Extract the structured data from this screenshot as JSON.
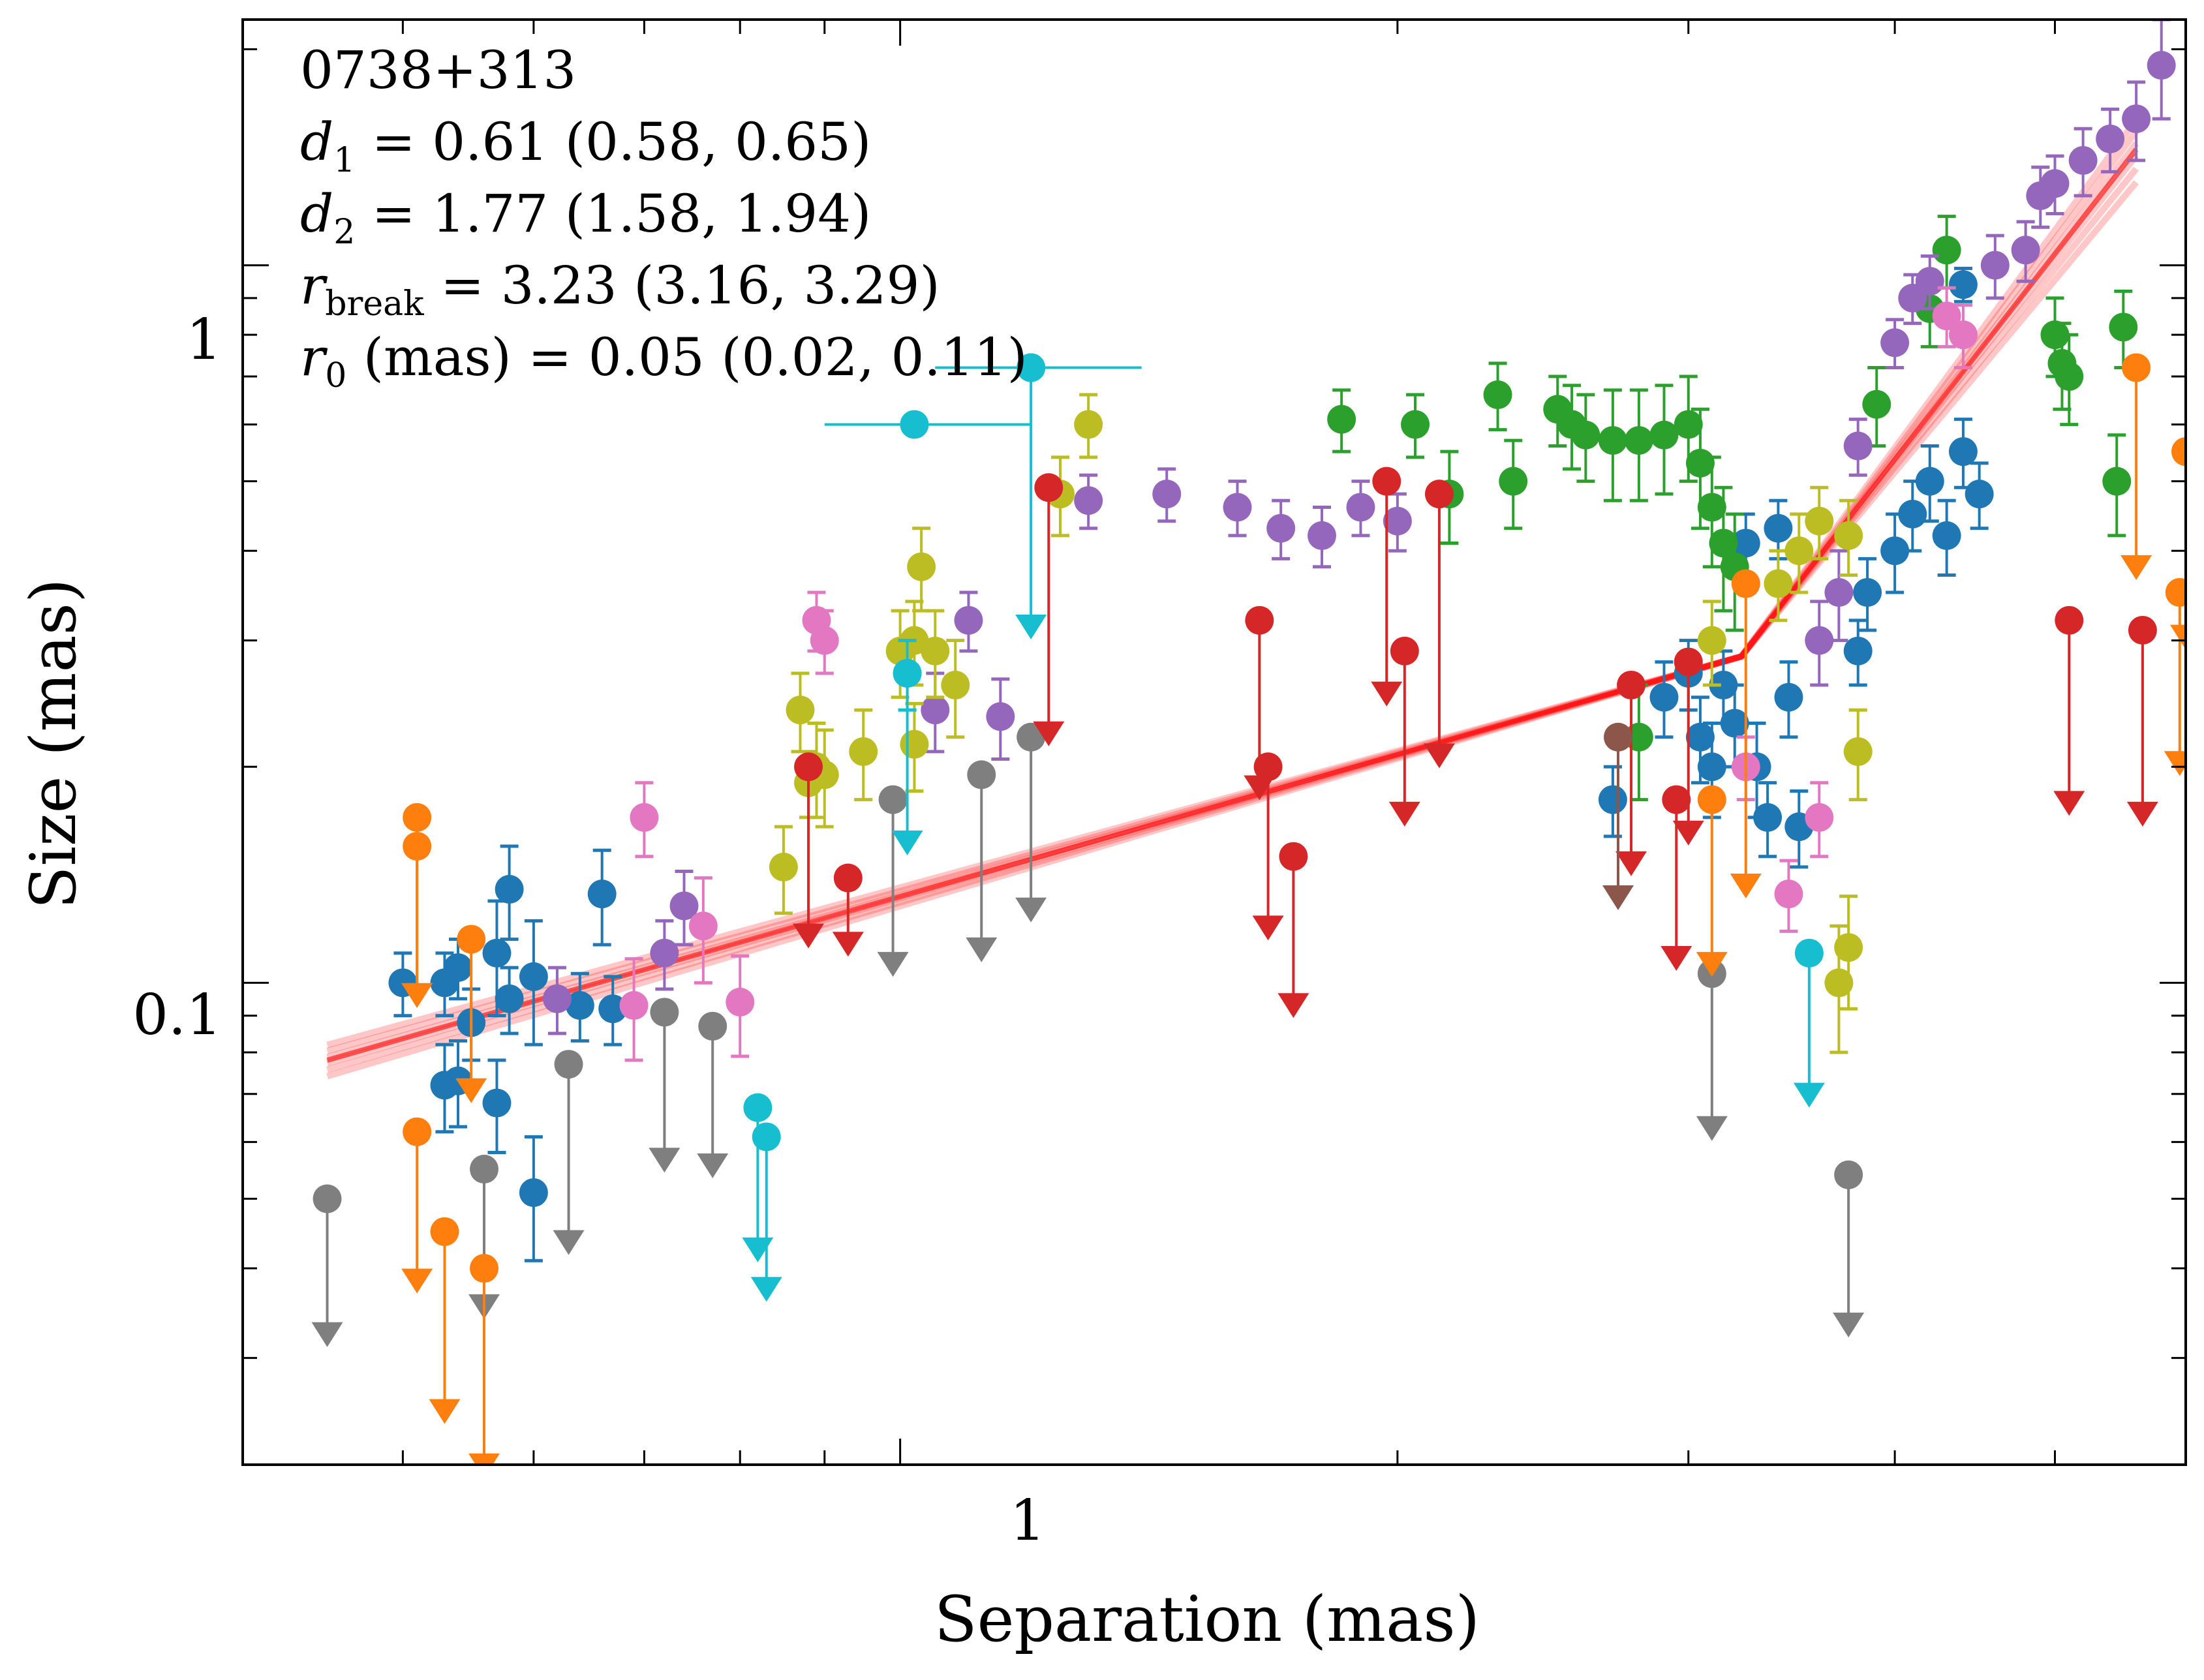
{
  "chart_data": {
    "type": "scatter",
    "xscale": "log",
    "yscale": "log",
    "xlabel": "Separation (mas)",
    "ylabel": "Size (mas)",
    "xlim": [
      0.4,
      6.0
    ],
    "ylim": [
      0.0213,
      2.2
    ],
    "x_ticks": [
      {
        "value": 1,
        "label": "1"
      }
    ],
    "y_ticks": [
      {
        "value": 0.1,
        "label": "0.1"
      },
      {
        "value": 1,
        "label": "1"
      }
    ],
    "annotation": {
      "source": "0738+313",
      "d1": {
        "sym": "d",
        "sub": "1",
        "text": " = 0.61 (0.58, 0.65)"
      },
      "d2": {
        "sym": "d",
        "sub": "2",
        "text": " = 1.77 (1.58, 1.94)"
      },
      "rbreak": {
        "sym": "r",
        "sub": "break",
        "text": " = 3.23 (3.16, 3.29)"
      },
      "r0": {
        "sym": "r",
        "sub": "0",
        "text": " (mas) = 0.05 (0.02, 0.11)"
      }
    },
    "fit": {
      "model": "broken power law",
      "color": "#ff0000",
      "x": [
        0.45,
        3.23,
        5.6
      ],
      "y": [
        0.078,
        0.285,
        1.45
      ],
      "n_samples": 6
    },
    "series": [
      {
        "name": "blue",
        "color": "#1f77b4",
        "points": [
          {
            "x": 0.5,
            "y": 0.1,
            "err": 0.01
          },
          {
            "x": 0.53,
            "y": 0.1,
            "err": 0.01
          },
          {
            "x": 0.54,
            "y": 0.105,
            "err": 0.01
          },
          {
            "x": 0.55,
            "y": 0.088,
            "err": 0.01
          },
          {
            "x": 0.53,
            "y": 0.072,
            "err": 0.01
          },
          {
            "x": 0.54,
            "y": 0.073,
            "err": 0.01
          },
          {
            "x": 0.57,
            "y": 0.11,
            "err": 0.02
          },
          {
            "x": 0.58,
            "y": 0.135,
            "err": 0.02
          },
          {
            "x": 0.6,
            "y": 0.102,
            "err": 0.02
          },
          {
            "x": 0.57,
            "y": 0.068,
            "err": 0.01
          },
          {
            "x": 0.58,
            "y": 0.095,
            "err": 0.01
          },
          {
            "x": 0.6,
            "y": 0.051,
            "err": 0.01
          },
          {
            "x": 0.64,
            "y": 0.093,
            "err": 0.01
          },
          {
            "x": 0.66,
            "y": 0.133,
            "err": 0.02
          },
          {
            "x": 0.67,
            "y": 0.092,
            "err": 0.01
          },
          {
            "x": 2.7,
            "y": 0.18,
            "err": 0.02
          },
          {
            "x": 2.9,
            "y": 0.25,
            "err": 0.03
          },
          {
            "x": 3.0,
            "y": 0.27,
            "err": 0.03
          },
          {
            "x": 3.05,
            "y": 0.22,
            "err": 0.03
          },
          {
            "x": 3.1,
            "y": 0.2,
            "err": 0.03
          },
          {
            "x": 3.15,
            "y": 0.26,
            "err": 0.03
          },
          {
            "x": 3.2,
            "y": 0.23,
            "err": 0.03
          },
          {
            "x": 3.25,
            "y": 0.41,
            "err": 0.04
          },
          {
            "x": 3.3,
            "y": 0.2,
            "err": 0.03
          },
          {
            "x": 3.35,
            "y": 0.17,
            "err": 0.02
          },
          {
            "x": 3.4,
            "y": 0.43,
            "err": 0.04
          },
          {
            "x": 3.45,
            "y": 0.25,
            "err": 0.03
          },
          {
            "x": 3.5,
            "y": 0.165,
            "err": 0.02
          },
          {
            "x": 3.8,
            "y": 0.29,
            "err": 0.03
          },
          {
            "x": 3.85,
            "y": 0.35,
            "err": 0.04
          },
          {
            "x": 4.0,
            "y": 0.4,
            "err": 0.05
          },
          {
            "x": 4.1,
            "y": 0.45,
            "err": 0.05
          },
          {
            "x": 4.2,
            "y": 0.5,
            "err": 0.06
          },
          {
            "x": 4.3,
            "y": 0.42,
            "err": 0.05
          },
          {
            "x": 4.4,
            "y": 0.55,
            "err": 0.06
          },
          {
            "x": 4.5,
            "y": 0.48,
            "err": 0.05
          },
          {
            "x": 4.4,
            "y": 0.94,
            "err": 0.05
          }
        ]
      },
      {
        "name": "green",
        "color": "#2ca02c",
        "points": [
          {
            "x": 1.85,
            "y": 0.61,
            "err": 0.06
          },
          {
            "x": 2.05,
            "y": 0.6,
            "err": 0.06
          },
          {
            "x": 2.15,
            "y": 0.48,
            "err": 0.07
          },
          {
            "x": 2.3,
            "y": 0.66,
            "err": 0.07
          },
          {
            "x": 2.35,
            "y": 0.5,
            "err": 0.07
          },
          {
            "x": 2.5,
            "y": 0.63,
            "err": 0.07
          },
          {
            "x": 2.55,
            "y": 0.6,
            "err": 0.08
          },
          {
            "x": 2.6,
            "y": 0.58,
            "err": 0.08
          },
          {
            "x": 2.7,
            "y": 0.57,
            "err": 0.1
          },
          {
            "x": 2.8,
            "y": 0.57,
            "err": 0.1
          },
          {
            "x": 2.9,
            "y": 0.58,
            "err": 0.1
          },
          {
            "x": 3.0,
            "y": 0.6,
            "err": 0.1
          },
          {
            "x": 3.05,
            "y": 0.53,
            "err": 0.1
          },
          {
            "x": 3.1,
            "y": 0.46,
            "err": 0.08
          },
          {
            "x": 3.15,
            "y": 0.41,
            "err": 0.08
          },
          {
            "x": 3.2,
            "y": 0.38,
            "err": 0.07
          },
          {
            "x": 2.8,
            "y": 0.22,
            "err": 0.04
          },
          {
            "x": 3.9,
            "y": 0.64,
            "err": 0.08
          },
          {
            "x": 4.2,
            "y": 0.87,
            "err": 0.1
          },
          {
            "x": 4.3,
            "y": 1.05,
            "err": 0.12
          },
          {
            "x": 5.0,
            "y": 0.8,
            "err": 0.1
          },
          {
            "x": 5.05,
            "y": 0.73,
            "err": 0.1
          },
          {
            "x": 5.1,
            "y": 0.7,
            "err": 0.1
          },
          {
            "x": 5.5,
            "y": 0.82,
            "err": 0.1
          },
          {
            "x": 5.45,
            "y": 0.5,
            "err": 0.08
          }
        ]
      },
      {
        "name": "purple",
        "color": "#9467bd",
        "points": [
          {
            "x": 0.62,
            "y": 0.095,
            "err": 0.01
          },
          {
            "x": 0.74,
            "y": 0.128,
            "err": 0.015
          },
          {
            "x": 0.72,
            "y": 0.11,
            "err": 0.012
          },
          {
            "x": 1.05,
            "y": 0.24,
            "err": 0.03
          },
          {
            "x": 1.1,
            "y": 0.32,
            "err": 0.03
          },
          {
            "x": 1.15,
            "y": 0.235,
            "err": 0.03
          },
          {
            "x": 1.3,
            "y": 0.47,
            "err": 0.04
          },
          {
            "x": 1.45,
            "y": 0.48,
            "err": 0.04
          },
          {
            "x": 1.6,
            "y": 0.46,
            "err": 0.04
          },
          {
            "x": 1.7,
            "y": 0.43,
            "err": 0.04
          },
          {
            "x": 1.8,
            "y": 0.42,
            "err": 0.04
          },
          {
            "x": 1.9,
            "y": 0.46,
            "err": 0.04
          },
          {
            "x": 2.0,
            "y": 0.44,
            "err": 0.04
          },
          {
            "x": 3.6,
            "y": 0.3,
            "err": 0.04
          },
          {
            "x": 3.8,
            "y": 0.56,
            "err": 0.05
          },
          {
            "x": 4.0,
            "y": 0.78,
            "err": 0.06
          },
          {
            "x": 4.1,
            "y": 0.9,
            "err": 0.07
          },
          {
            "x": 4.2,
            "y": 0.95,
            "err": 0.08
          },
          {
            "x": 4.6,
            "y": 1.0,
            "err": 0.1
          },
          {
            "x": 4.8,
            "y": 1.05,
            "err": 0.1
          },
          {
            "x": 4.9,
            "y": 1.25,
            "err": 0.12
          },
          {
            "x": 5.0,
            "y": 1.3,
            "err": 0.12
          },
          {
            "x": 5.2,
            "y": 1.4,
            "err": 0.15
          },
          {
            "x": 5.4,
            "y": 1.5,
            "err": 0.15
          },
          {
            "x": 5.6,
            "y": 1.6,
            "err": 0.2
          },
          {
            "x": 5.8,
            "y": 1.9,
            "err": 0.3
          },
          {
            "x": 3.7,
            "y": 0.35,
            "err": 0.05
          }
        ]
      },
      {
        "name": "olive",
        "color": "#bcbd22",
        "points": [
          {
            "x": 0.87,
            "y": 0.24,
            "err": 0.03
          },
          {
            "x": 0.88,
            "y": 0.19,
            "err": 0.02
          },
          {
            "x": 0.89,
            "y": 0.2,
            "err": 0.03
          },
          {
            "x": 0.9,
            "y": 0.195,
            "err": 0.03
          },
          {
            "x": 0.95,
            "y": 0.21,
            "err": 0.03
          },
          {
            "x": 1.0,
            "y": 0.29,
            "err": 0.04
          },
          {
            "x": 1.02,
            "y": 0.3,
            "err": 0.04
          },
          {
            "x": 1.03,
            "y": 0.38,
            "err": 0.05
          },
          {
            "x": 1.05,
            "y": 0.29,
            "err": 0.04
          },
          {
            "x": 1.08,
            "y": 0.26,
            "err": 0.04
          },
          {
            "x": 1.02,
            "y": 0.215,
            "err": 0.03
          },
          {
            "x": 1.25,
            "y": 0.48,
            "err": 0.06
          },
          {
            "x": 1.3,
            "y": 0.6,
            "err": 0.06
          },
          {
            "x": 3.1,
            "y": 0.3,
            "err": 0.04
          },
          {
            "x": 3.4,
            "y": 0.36,
            "err": 0.04
          },
          {
            "x": 3.5,
            "y": 0.4,
            "err": 0.05
          },
          {
            "x": 3.6,
            "y": 0.44,
            "err": 0.05
          },
          {
            "x": 3.75,
            "y": 0.42,
            "err": 0.05
          },
          {
            "x": 3.8,
            "y": 0.21,
            "err": 0.03
          },
          {
            "x": 3.75,
            "y": 0.112,
            "err": 0.02
          },
          {
            "x": 3.7,
            "y": 0.1,
            "err": 0.02
          },
          {
            "x": 0.85,
            "y": 0.145,
            "err": 0.02
          }
        ]
      },
      {
        "name": "pink",
        "color": "#e377c2",
        "points": [
          {
            "x": 0.7,
            "y": 0.17,
            "err": 0.02
          },
          {
            "x": 0.76,
            "y": 0.12,
            "err": 0.02
          },
          {
            "x": 0.69,
            "y": 0.093,
            "err": 0.015
          },
          {
            "x": 0.8,
            "y": 0.094,
            "err": 0.015
          },
          {
            "x": 0.89,
            "y": 0.32,
            "err": 0.03
          },
          {
            "x": 0.9,
            "y": 0.3,
            "err": 0.03
          },
          {
            "x": 3.45,
            "y": 0.133,
            "err": 0.015
          },
          {
            "x": 3.6,
            "y": 0.17,
            "err": 0.02
          },
          {
            "x": 3.25,
            "y": 0.2,
            "err": 0.02
          },
          {
            "x": 4.3,
            "y": 0.85,
            "err": 0.08
          },
          {
            "x": 4.4,
            "y": 0.8,
            "err": 0.08
          }
        ]
      },
      {
        "name": "cyan",
        "color": "#17becf",
        "points": [
          {
            "x": 1.02,
            "y": 0.6,
            "err": 0.01,
            "xerr": [
              0.9,
              1.2
            ]
          },
          {
            "x": 1.2,
            "y": 0.72,
            "err": 0.01,
            "xerr": [
              1.05,
              1.4
            ]
          },
          {
            "x": 1.01,
            "y": 0.27,
            "err": 0.03
          }
        ]
      }
    ],
    "upper_limits": [
      {
        "series": "gray",
        "color": "#7f7f7f",
        "points": [
          {
            "x": 0.45,
            "y": 0.05,
            "limit": 0.032
          },
          {
            "x": 0.56,
            "y": 0.055,
            "limit": 0.035
          },
          {
            "x": 0.63,
            "y": 0.077,
            "limit": 0.043
          },
          {
            "x": 0.72,
            "y": 0.091,
            "limit": 0.056
          },
          {
            "x": 0.77,
            "y": 0.087,
            "limit": 0.055
          },
          {
            "x": 0.99,
            "y": 0.18,
            "limit": 0.105
          },
          {
            "x": 1.12,
            "y": 0.195,
            "limit": 0.11
          },
          {
            "x": 1.2,
            "y": 0.22,
            "limit": 0.125
          },
          {
            "x": 3.1,
            "y": 0.103,
            "limit": 0.062
          },
          {
            "x": 3.75,
            "y": 0.054,
            "limit": 0.033
          }
        ]
      },
      {
        "series": "orange",
        "color": "#ff7f0e",
        "points": [
          {
            "x": 0.51,
            "y": 0.17,
            "limit": 0.095
          },
          {
            "x": 0.51,
            "y": 0.155,
            "limit": 0.095
          },
          {
            "x": 0.51,
            "y": 0.062,
            "limit": 0.038
          },
          {
            "x": 0.53,
            "y": 0.045,
            "limit": 0.025
          },
          {
            "x": 0.56,
            "y": 0.04,
            "limit": 0.021
          },
          {
            "x": 0.55,
            "y": 0.115,
            "limit": 0.07
          },
          {
            "x": 3.1,
            "y": 0.18,
            "limit": 0.105
          },
          {
            "x": 3.25,
            "y": 0.36,
            "limit": 0.135
          },
          {
            "x": 5.6,
            "y": 0.72,
            "limit": 0.375
          },
          {
            "x": 6.0,
            "y": 0.55,
            "limit": 0.3
          },
          {
            "x": 5.95,
            "y": 0.35,
            "limit": 0.2
          }
        ]
      },
      {
        "series": "red",
        "color": "#d62728",
        "points": [
          {
            "x": 0.88,
            "y": 0.2,
            "limit": 0.115
          },
          {
            "x": 0.93,
            "y": 0.14,
            "limit": 0.112
          },
          {
            "x": 1.23,
            "y": 0.49,
            "limit": 0.22
          },
          {
            "x": 1.65,
            "y": 0.32,
            "limit": 0.185
          },
          {
            "x": 1.67,
            "y": 0.2,
            "limit": 0.118
          },
          {
            "x": 1.73,
            "y": 0.15,
            "limit": 0.092
          },
          {
            "x": 1.97,
            "y": 0.5,
            "limit": 0.25
          },
          {
            "x": 2.02,
            "y": 0.29,
            "limit": 0.17
          },
          {
            "x": 2.12,
            "y": 0.48,
            "limit": 0.205
          },
          {
            "x": 2.77,
            "y": 0.26,
            "limit": 0.145
          },
          {
            "x": 2.95,
            "y": 0.18,
            "limit": 0.107
          },
          {
            "x": 3.0,
            "y": 0.28,
            "limit": 0.16
          },
          {
            "x": 5.1,
            "y": 0.32,
            "limit": 0.176
          },
          {
            "x": 5.65,
            "y": 0.31,
            "limit": 0.17
          }
        ]
      },
      {
        "series": "brown",
        "color": "#8c564b",
        "points": [
          {
            "x": 2.72,
            "y": 0.22,
            "limit": 0.13
          }
        ]
      },
      {
        "series": "cyan",
        "color": "#17becf",
        "points": [
          {
            "x": 0.82,
            "y": 0.067,
            "limit": 0.042
          },
          {
            "x": 0.83,
            "y": 0.061,
            "limit": 0.037
          },
          {
            "x": 1.01,
            "y": 0.27,
            "limit": 0.155
          },
          {
            "x": 1.2,
            "y": 0.72,
            "limit": 0.31
          },
          {
            "x": 3.55,
            "y": 0.11,
            "limit": 0.069
          }
        ]
      }
    ]
  }
}
